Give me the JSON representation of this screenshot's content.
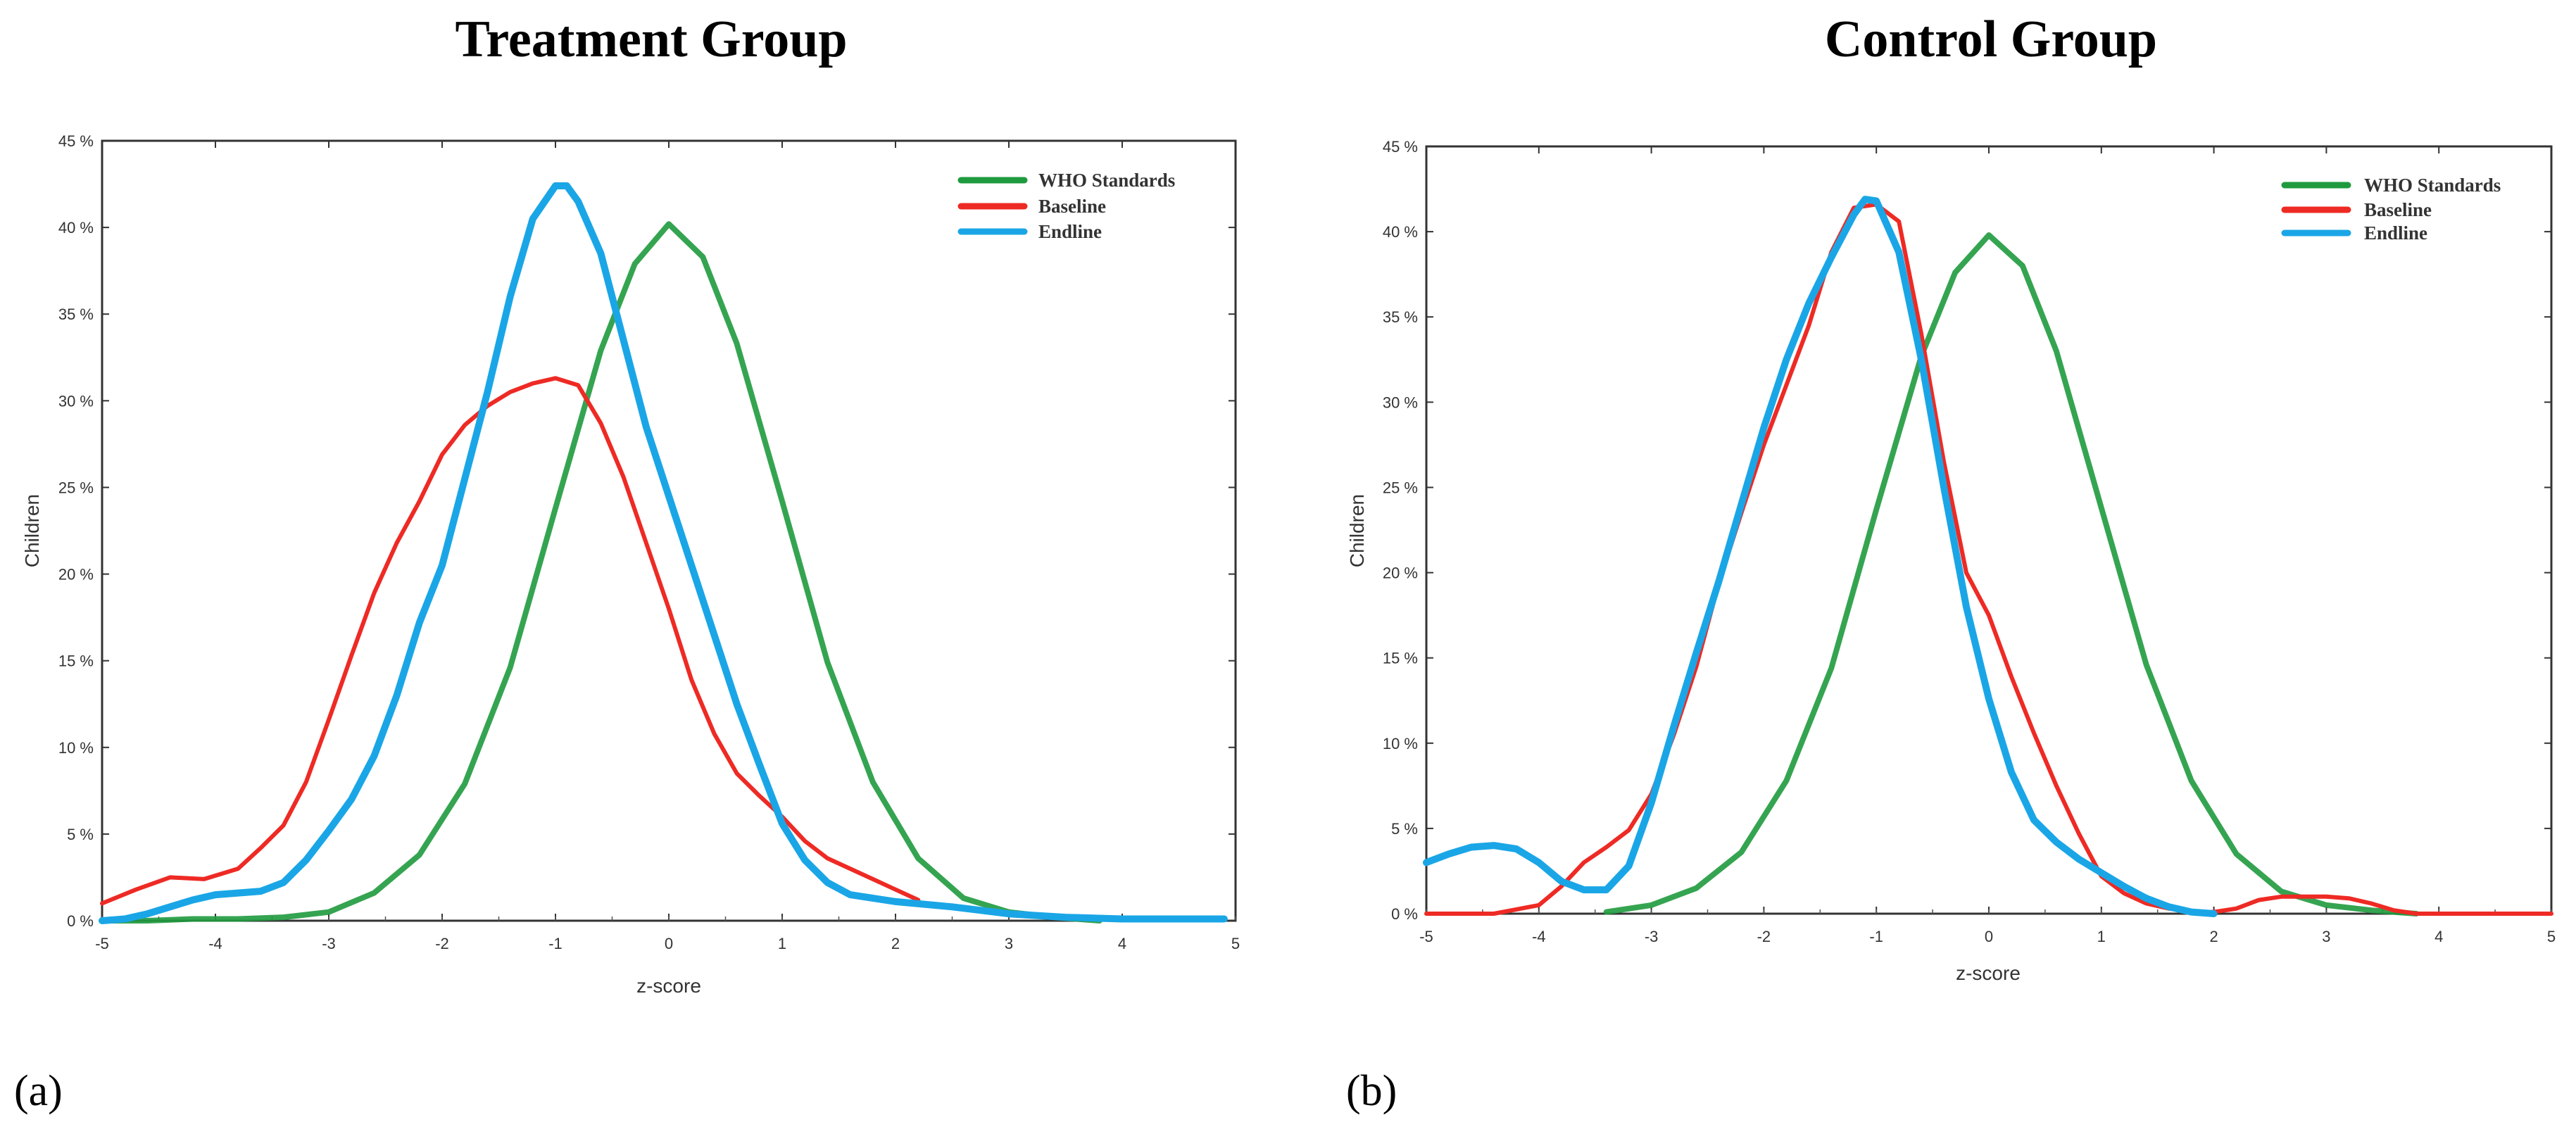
{
  "colors": {
    "who": "#1f9a3e",
    "baseline": "#ee2a24",
    "endline": "#1aa6e6",
    "axis": "#333333"
  },
  "chart_data": [
    {
      "panel_label": "(a)",
      "type": "line",
      "title": "Treatment Group",
      "xlabel": "z-score",
      "ylabel": "Children",
      "xlim": [
        -5,
        5
      ],
      "ylim": [
        0,
        45
      ],
      "x_ticks": [
        "-5",
        "-4",
        "-3",
        "-2",
        "-1",
        "0",
        "1",
        "2",
        "3",
        "4",
        "5"
      ],
      "y_ticks": [
        "0 %",
        "5 %",
        "10 %",
        "15 %",
        "20 %",
        "25 %",
        "30 %",
        "35 %",
        "40 %",
        "45 %"
      ],
      "legend": [
        "WHO Standards",
        "Baseline",
        "Endline"
      ],
      "legend_position": "top-right",
      "series": [
        {
          "name": "WHO Standards",
          "color": "#1f9a3e",
          "x": [
            -5,
            -4.6,
            -4.2,
            -3.8,
            -3.4,
            -3.0,
            -2.6,
            -2.2,
            -1.8,
            -1.4,
            -1.0,
            -0.6,
            -0.3,
            0.0,
            0.3,
            0.6,
            1.0,
            1.4,
            1.8,
            2.2,
            2.6,
            3.0,
            3.4,
            3.8
          ],
          "values": [
            0,
            0,
            0.1,
            0.1,
            0.2,
            0.5,
            1.6,
            3.8,
            7.9,
            14.6,
            23.8,
            32.9,
            37.9,
            40.2,
            38.3,
            33.3,
            24.2,
            14.9,
            8.0,
            3.6,
            1.3,
            0.5,
            0.2,
            0
          ]
        },
        {
          "name": "Baseline",
          "color": "#ee2a24",
          "x": [
            -5,
            -4.7,
            -4.4,
            -4.1,
            -3.8,
            -3.6,
            -3.4,
            -3.2,
            -3.0,
            -2.8,
            -2.6,
            -2.4,
            -2.2,
            -2.0,
            -1.8,
            -1.6,
            -1.4,
            -1.2,
            -1.0,
            -0.8,
            -0.6,
            -0.4,
            -0.2,
            0.0,
            0.2,
            0.4,
            0.6,
            0.8,
            1.0,
            1.2,
            1.4,
            1.6,
            1.8,
            2.0,
            2.2
          ],
          "values": [
            1.0,
            1.8,
            2.5,
            2.4,
            3.0,
            4.2,
            5.5,
            8.0,
            11.6,
            15.3,
            18.9,
            21.8,
            24.2,
            26.9,
            28.6,
            29.7,
            30.5,
            31.0,
            31.3,
            30.9,
            28.7,
            25.6,
            21.8,
            18.0,
            13.9,
            10.8,
            8.5,
            7.2,
            6.0,
            4.6,
            3.6,
            3.0,
            2.4,
            1.8,
            1.2
          ]
        },
        {
          "name": "Endline",
          "color": "#1aa6e6",
          "x": [
            -5,
            -4.8,
            -4.6,
            -4.4,
            -4.2,
            -4.0,
            -3.8,
            -3.6,
            -3.4,
            -3.2,
            -3.0,
            -2.8,
            -2.6,
            -2.4,
            -2.2,
            -2.0,
            -1.8,
            -1.6,
            -1.4,
            -1.2,
            -1.0,
            -0.9,
            -0.8,
            -0.6,
            -0.4,
            -0.2,
            0.0,
            0.2,
            0.4,
            0.6,
            0.8,
            1.0,
            1.2,
            1.4,
            1.6,
            2.0,
            2.5,
            3.0,
            3.5,
            4.0,
            4.5,
            4.9
          ],
          "values": [
            0,
            0.1,
            0.4,
            0.8,
            1.2,
            1.5,
            1.6,
            1.7,
            2.2,
            3.5,
            5.2,
            7.0,
            9.5,
            13.0,
            17.2,
            20.5,
            25.5,
            30.5,
            36.0,
            40.5,
            42.4,
            42.4,
            41.5,
            38.5,
            33.5,
            28.5,
            24.5,
            20.5,
            16.5,
            12.5,
            9.0,
            5.6,
            3.5,
            2.2,
            1.5,
            1.1,
            0.8,
            0.4,
            0.2,
            0.1,
            0.1,
            0.1
          ]
        }
      ]
    },
    {
      "panel_label": "(b)",
      "type": "line",
      "title": "Control Group",
      "xlabel": "z-score",
      "ylabel": "Children",
      "xlim": [
        -5,
        5
      ],
      "ylim": [
        0,
        45
      ],
      "x_ticks": [
        "-5",
        "-4",
        "-3",
        "-2",
        "-1",
        "0",
        "1",
        "2",
        "3",
        "4",
        "5"
      ],
      "y_ticks": [
        "0 %",
        "5 %",
        "10 %",
        "15 %",
        "20 %",
        "25 %",
        "30 %",
        "35 %",
        "40 %",
        "45 %"
      ],
      "legend": [
        "WHO Standards",
        "Baseline",
        "Endline"
      ],
      "legend_position": "top-right",
      "series": [
        {
          "name": "WHO Standards",
          "color": "#1f9a3e",
          "x": [
            -3.4,
            -3.0,
            -2.6,
            -2.2,
            -1.8,
            -1.4,
            -1.0,
            -0.6,
            -0.3,
            0.0,
            0.3,
            0.6,
            1.0,
            1.4,
            1.8,
            2.2,
            2.6,
            3.0,
            3.4,
            3.8
          ],
          "values": [
            0.1,
            0.5,
            1.5,
            3.6,
            7.8,
            14.4,
            23.7,
            32.7,
            37.6,
            39.8,
            38.0,
            33.0,
            23.8,
            14.6,
            7.8,
            3.5,
            1.3,
            0.5,
            0.2,
            0
          ]
        },
        {
          "name": "Baseline",
          "color": "#ee2a24",
          "x": [
            -5,
            -4.4,
            -4.0,
            -3.8,
            -3.6,
            -3.4,
            -3.2,
            -3.0,
            -2.8,
            -2.6,
            -2.4,
            -2.2,
            -2.0,
            -1.8,
            -1.6,
            -1.4,
            -1.2,
            -1.0,
            -0.8,
            -0.6,
            -0.4,
            -0.2,
            0.0,
            0.2,
            0.4,
            0.6,
            0.8,
            1.0,
            1.2,
            1.4,
            1.6,
            1.8,
            2.0,
            2.2,
            2.4,
            2.6,
            2.8,
            3.0,
            3.2,
            3.4,
            3.6,
            3.8,
            4.2,
            5.0
          ],
          "values": [
            0,
            0,
            0.5,
            1.6,
            3.0,
            3.9,
            4.9,
            7.0,
            10.5,
            14.5,
            19.4,
            23.5,
            27.5,
            31.0,
            34.5,
            38.8,
            41.4,
            41.6,
            40.6,
            34.0,
            26.5,
            20.0,
            17.5,
            13.9,
            10.6,
            7.5,
            4.7,
            2.2,
            1.2,
            0.6,
            0.3,
            0.1,
            0.1,
            0.3,
            0.8,
            1.0,
            1.0,
            1.0,
            0.9,
            0.6,
            0.2,
            0,
            0,
            0
          ]
        },
        {
          "name": "Endline",
          "color": "#1aa6e6",
          "x": [
            -5,
            -4.8,
            -4.6,
            -4.4,
            -4.2,
            -4.0,
            -3.8,
            -3.6,
            -3.4,
            -3.2,
            -3.0,
            -2.8,
            -2.6,
            -2.4,
            -2.2,
            -2.0,
            -1.8,
            -1.6,
            -1.4,
            -1.2,
            -1.1,
            -1.0,
            -0.8,
            -0.6,
            -0.4,
            -0.2,
            0.0,
            0.2,
            0.4,
            0.6,
            0.8,
            1.0,
            1.2,
            1.4,
            1.6,
            1.8,
            2.0
          ],
          "values": [
            3.0,
            3.5,
            3.9,
            4.0,
            3.8,
            3.0,
            1.9,
            1.4,
            1.4,
            2.8,
            6.5,
            11.0,
            15.3,
            19.5,
            24.0,
            28.5,
            32.5,
            35.8,
            38.5,
            41.0,
            41.9,
            41.8,
            38.8,
            32.5,
            25.0,
            18.0,
            12.6,
            8.3,
            5.5,
            4.2,
            3.2,
            2.4,
            1.6,
            0.9,
            0.4,
            0.1,
            0
          ]
        }
      ]
    }
  ]
}
